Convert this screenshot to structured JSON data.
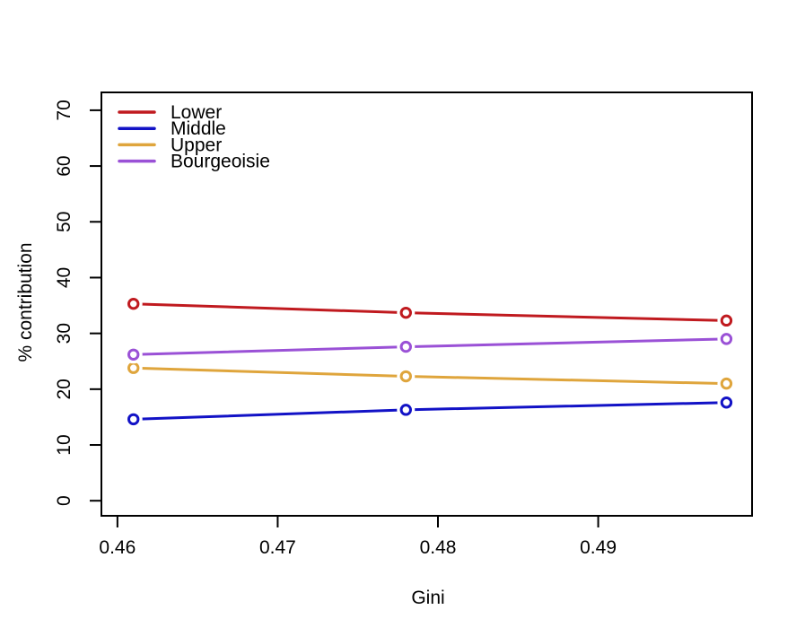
{
  "chart_data": {
    "type": "line",
    "title": "",
    "xlabel": "Gini",
    "ylabel": "% contribution",
    "x": [
      0.461,
      0.478,
      0.498
    ],
    "series": [
      {
        "name": "Lower",
        "color": "#c01a1f",
        "values": [
          35.3,
          33.7,
          32.3
        ]
      },
      {
        "name": "Middle",
        "color": "#1212c6",
        "values": [
          14.6,
          16.3,
          17.6
        ]
      },
      {
        "name": "Upper",
        "color": "#dfa53c",
        "values": [
          23.8,
          22.3,
          21.0
        ]
      },
      {
        "name": "Bourgeoisie",
        "color": "#9a51d6",
        "values": [
          26.2,
          27.6,
          29.0
        ]
      }
    ],
    "xticks": [
      0.46,
      0.47,
      0.48,
      0.49
    ],
    "xtick_labels": [
      "0.46",
      "0.47",
      "0.48",
      "0.49"
    ],
    "yticks": [
      0,
      10,
      20,
      30,
      40,
      50,
      60,
      70
    ],
    "ytick_labels": [
      "0",
      "10",
      "20",
      "30",
      "40",
      "50",
      "60",
      "70"
    ],
    "xlim": [
      0.459,
      0.4996
    ],
    "ylim": [
      -2.7,
      73.2
    ],
    "grid": false,
    "legend_position": "top-left",
    "marker": "open-circle",
    "axis_color": "#000000",
    "background_color": "#ffffff"
  }
}
